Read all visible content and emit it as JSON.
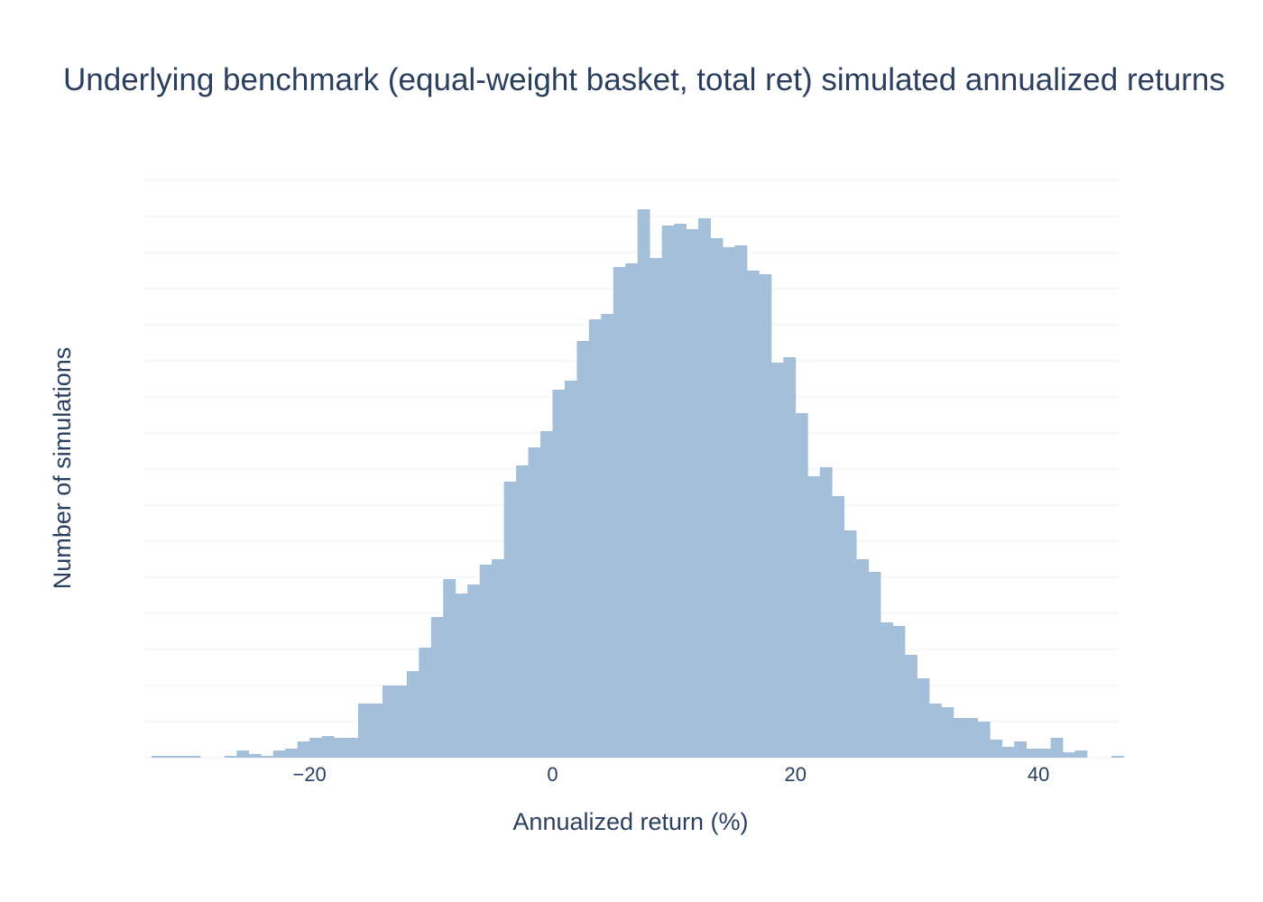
{
  "chart_data": {
    "type": "bar",
    "title": "Underlying benchmark (equal-weight basket, total ret) simulated annualized returns",
    "xlabel": "Annualized return (%)",
    "ylabel": "Number of simulations",
    "x_tick_labels": [
      "−20",
      "0",
      "20",
      "40"
    ],
    "x_tick_values": [
      -20,
      0,
      20,
      40
    ],
    "xlim": [
      -33.6,
      46.6
    ],
    "ylim": [
      0,
      320
    ],
    "grid": true,
    "bar_color": "#a3bfd9",
    "bin_width": 1,
    "series": [
      {
        "x": [
          -33,
          -32,
          -31,
          -30,
          -29,
          -28,
          -27,
          -26,
          -25,
          -24,
          -23,
          -22,
          -21,
          -20,
          -19,
          -18,
          -17,
          -16,
          -15,
          -14,
          -13,
          -12,
          -11,
          -10,
          -9,
          -8,
          -7,
          -6,
          -5,
          -4,
          -3,
          -2,
          -1,
          0,
          1,
          2,
          3,
          4,
          5,
          6,
          7,
          8,
          9,
          10,
          11,
          12,
          13,
          14,
          15,
          16,
          17,
          18,
          19,
          20,
          21,
          22,
          23,
          24,
          25,
          26,
          27,
          28,
          29,
          30,
          31,
          32,
          33,
          34,
          35,
          36,
          37,
          38,
          39,
          40,
          41,
          42,
          43,
          44,
          45,
          46
        ],
        "values": [
          1,
          1,
          1,
          1,
          0,
          0,
          1,
          4,
          2,
          1,
          4,
          5,
          9,
          11,
          12,
          11,
          11,
          30,
          30,
          40,
          40,
          48,
          61,
          78,
          99,
          91,
          96,
          107,
          110,
          153,
          162,
          172,
          181,
          204,
          209,
          231,
          243,
          246,
          272,
          274,
          304,
          277,
          295,
          296,
          293,
          299,
          288,
          283,
          284,
          270,
          268,
          219,
          222,
          191,
          156,
          161,
          145,
          126,
          110,
          103,
          75,
          73,
          57,
          44,
          30,
          28,
          22,
          22,
          20,
          10,
          6,
          9,
          5,
          5,
          11,
          3,
          4,
          0,
          0,
          1
        ]
      }
    ]
  }
}
